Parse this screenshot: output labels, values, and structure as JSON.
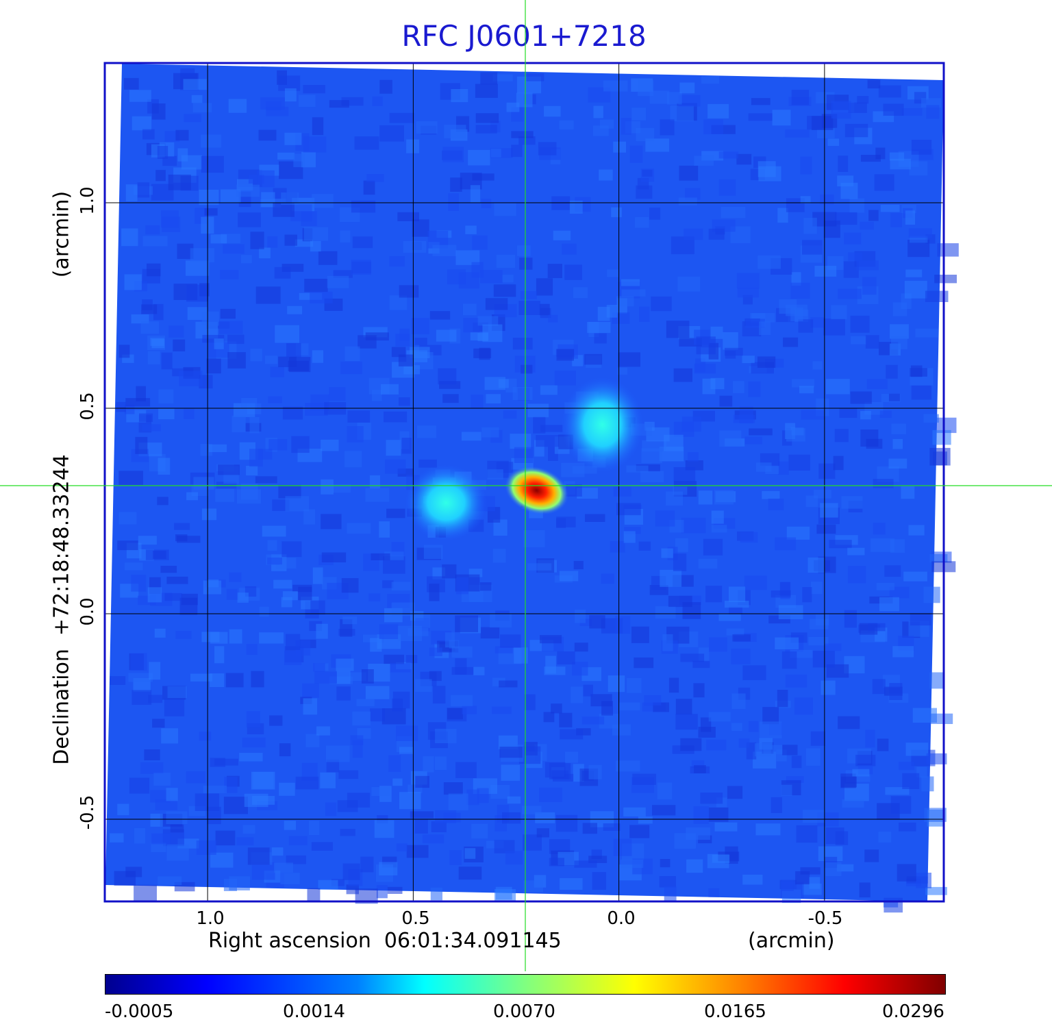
{
  "chart_data": {
    "type": "heatmap",
    "title": "RFC J0601+7218",
    "xlabel": "Right ascension  06:01:34.091145",
    "xunit": "(arcmin)",
    "ylabel": "Declination  +72:18:48.33244",
    "yunit": "(arcmin)",
    "xlim": [
      1.25,
      -0.79
    ],
    "ylim": [
      -0.7,
      1.34
    ],
    "x_ticks": [
      "1.0",
      "0.5",
      "0.0",
      "-0.5"
    ],
    "x_tick_values": [
      1.0,
      0.5,
      0.0,
      -0.5
    ],
    "y_ticks": [
      "1.0",
      "0.5",
      "0.0",
      "-0.5"
    ],
    "y_tick_values": [
      1.0,
      0.5,
      0.0,
      -0.5
    ],
    "grid": true,
    "crosshair": {
      "x": 0.22,
      "y": 0.31,
      "color": "#00cc00"
    },
    "sources": [
      {
        "x": 0.2,
        "y": 0.3,
        "peak": 0.0296
      },
      {
        "x": 0.42,
        "y": 0.27,
        "peak": 0.0045
      },
      {
        "x": 0.04,
        "y": 0.46,
        "peak": 0.005
      }
    ],
    "colorbar": {
      "ticks": [
        "-0.0005",
        "0.0014",
        "0.0070",
        "0.0165",
        "0.0296"
      ],
      "colormap": "jet"
    }
  },
  "colors": {
    "frame": "#1010c8",
    "title": "#1a1ad0",
    "grid": "#000000",
    "crosshair": "#22dd22"
  }
}
